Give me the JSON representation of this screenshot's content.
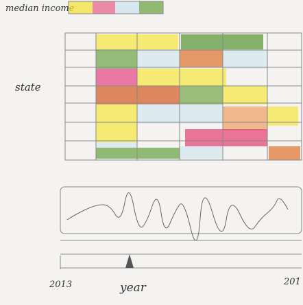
{
  "legend": {
    "title": "median income"
  },
  "heatmap": {
    "y_label": "state"
  },
  "timeline": {
    "start": "2013",
    "label": "year",
    "end": "201"
  }
}
